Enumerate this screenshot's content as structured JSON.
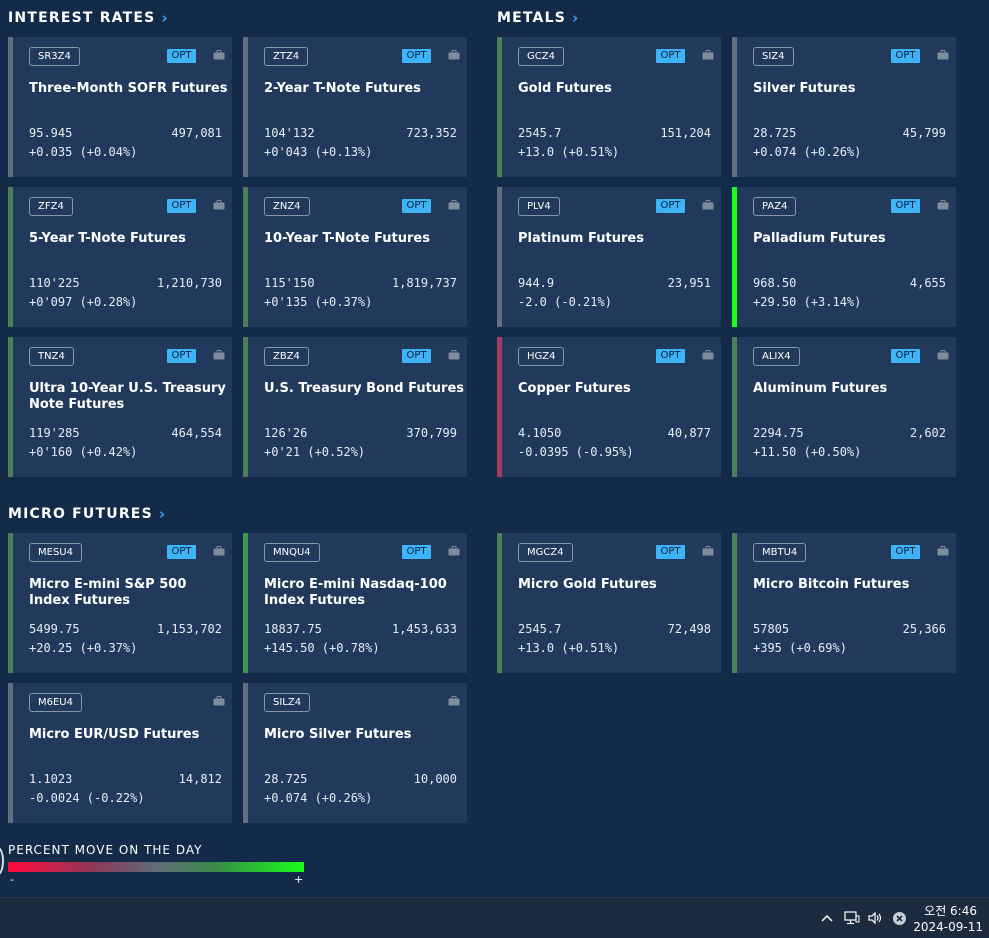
{
  "sections": {
    "interest_rates": "INTEREST RATES",
    "metals": "METALS",
    "micro_futures": "MICRO FUTURES"
  },
  "cards": [
    {
      "symbol": "SR3Z4",
      "opt": "OPT",
      "name": "Three-Month SOFR Futures",
      "price": "95.945",
      "volume": "497,081",
      "change": "+0.035 (+0.04%)",
      "accent": "#60707f"
    },
    {
      "symbol": "ZTZ4",
      "opt": "OPT",
      "name": "2-Year T-Note Futures",
      "price": "104'132",
      "volume": "723,352",
      "change": "+0'043 (+0.13%)",
      "accent": "#60707f"
    },
    {
      "symbol": "GCZ4",
      "opt": "OPT",
      "name": "Gold Futures",
      "price": "2545.7",
      "volume": "151,204",
      "change": "+13.0 (+0.51%)",
      "accent": "#4a7f58"
    },
    {
      "symbol": "SIZ4",
      "opt": "OPT",
      "name": "Silver Futures",
      "price": "28.725",
      "volume": "45,799",
      "change": "+0.074 (+0.26%)",
      "accent": "#60707f"
    },
    {
      "symbol": "ZFZ4",
      "opt": "OPT",
      "name": "5-Year T-Note Futures",
      "price": "110'225",
      "volume": "1,210,730",
      "change": "+0'097 (+0.28%)",
      "accent": "#4a7f58"
    },
    {
      "symbol": "ZNZ4",
      "opt": "OPT",
      "name": "10-Year T-Note Futures",
      "price": "115'150",
      "volume": "1,819,737",
      "change": "+0'135 (+0.37%)",
      "accent": "#4a7f58"
    },
    {
      "symbol": "PLV4",
      "opt": "OPT",
      "name": "Platinum Futures",
      "price": "944.9",
      "volume": "23,951",
      "change": "-2.0 (-0.21%)",
      "accent": "#60707f"
    },
    {
      "symbol": "PAZ4",
      "opt": "OPT",
      "name": "Palladium Futures",
      "price": "968.50",
      "volume": "4,655",
      "change": "+29.50 (+3.14%)",
      "accent": "#19ff19"
    },
    {
      "symbol": "TNZ4",
      "opt": "OPT",
      "name": "Ultra 10-Year U.S. Treasury Note Futures",
      "price": "119'285",
      "volume": "464,554",
      "change": "+0'160 (+0.42%)",
      "accent": "#4a7f58"
    },
    {
      "symbol": "ZBZ4",
      "opt": "OPT",
      "name": "U.S. Treasury Bond Futures",
      "price": "126'26",
      "volume": "370,799",
      "change": "+0'21 (+0.52%)",
      "accent": "#4a7f58"
    },
    {
      "symbol": "HGZ4",
      "opt": "OPT",
      "name": "Copper Futures",
      "price": "4.1050",
      "volume": "40,877",
      "change": "-0.0395 (-0.95%)",
      "accent": "#9e3d5c"
    },
    {
      "symbol": "ALIX4",
      "opt": "OPT",
      "name": "Aluminum Futures",
      "price": "2294.75",
      "volume": "2,602",
      "change": "+11.50 (+0.50%)",
      "accent": "#4a7f58"
    },
    {
      "symbol": "MESU4",
      "opt": "OPT",
      "name": "Micro E-mini S&P 500 Index Futures",
      "price": "5499.75",
      "volume": "1,153,702",
      "change": "+20.25 (+0.37%)",
      "accent": "#4a7f58"
    },
    {
      "symbol": "MNQU4",
      "opt": "OPT",
      "name": "Micro E-mini Nasdaq-100 Index Futures",
      "price": "18837.75",
      "volume": "1,453,633",
      "change": "+145.50 (+0.78%)",
      "accent": "#3f9a4a"
    },
    {
      "symbol": "MGCZ4",
      "opt": "OPT",
      "name": "Micro Gold Futures",
      "price": "2545.7",
      "volume": "72,498",
      "change": "+13.0 (+0.51%)",
      "accent": "#4a7f58"
    },
    {
      "symbol": "MBTU4",
      "opt": "OPT",
      "name": "Micro Bitcoin Futures",
      "price": "57805",
      "volume": "25,366",
      "change": "+395 (+0.69%)",
      "accent": "#4a7f58"
    },
    {
      "symbol": "M6EU4",
      "opt": "",
      "name": "Micro EUR/USD Futures",
      "price": "1.1023",
      "volume": "14,812",
      "change": "-0.0024 (-0.22%)",
      "accent": "#60707f"
    },
    {
      "symbol": "SILZ4",
      "opt": "",
      "name": "Micro Silver Futures",
      "price": "28.725",
      "volume": "10,000",
      "change": "+0.074 (+0.26%)",
      "accent": "#60707f"
    }
  ],
  "legend": {
    "title": "PERCENT MOVE ON THE DAY",
    "minus": "-",
    "plus": "+"
  },
  "taskbar": {
    "time": "오전 6:46",
    "date": "2024-09-11"
  }
}
